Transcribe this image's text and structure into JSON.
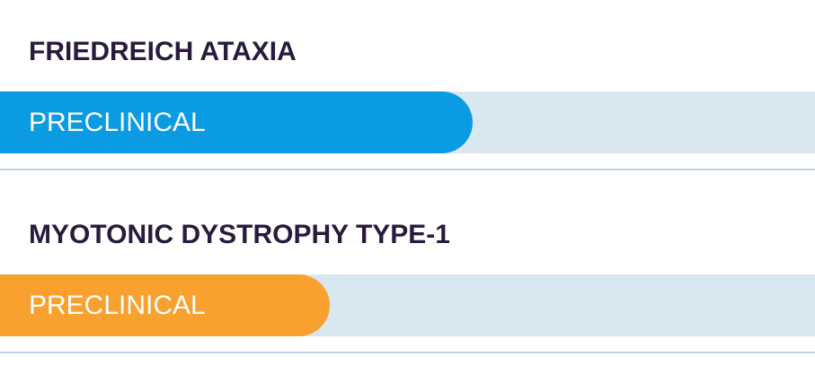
{
  "programs": [
    {
      "name": "FRIEDREICH ATAXIA",
      "stage": "PRECLINICAL",
      "progress": 58,
      "color": "#0a9be3"
    },
    {
      "name": "MYOTONIC DYSTROPHY TYPE-1",
      "stage": "PRECLINICAL",
      "progress": 40.5,
      "color": "#f8a12e"
    }
  ]
}
